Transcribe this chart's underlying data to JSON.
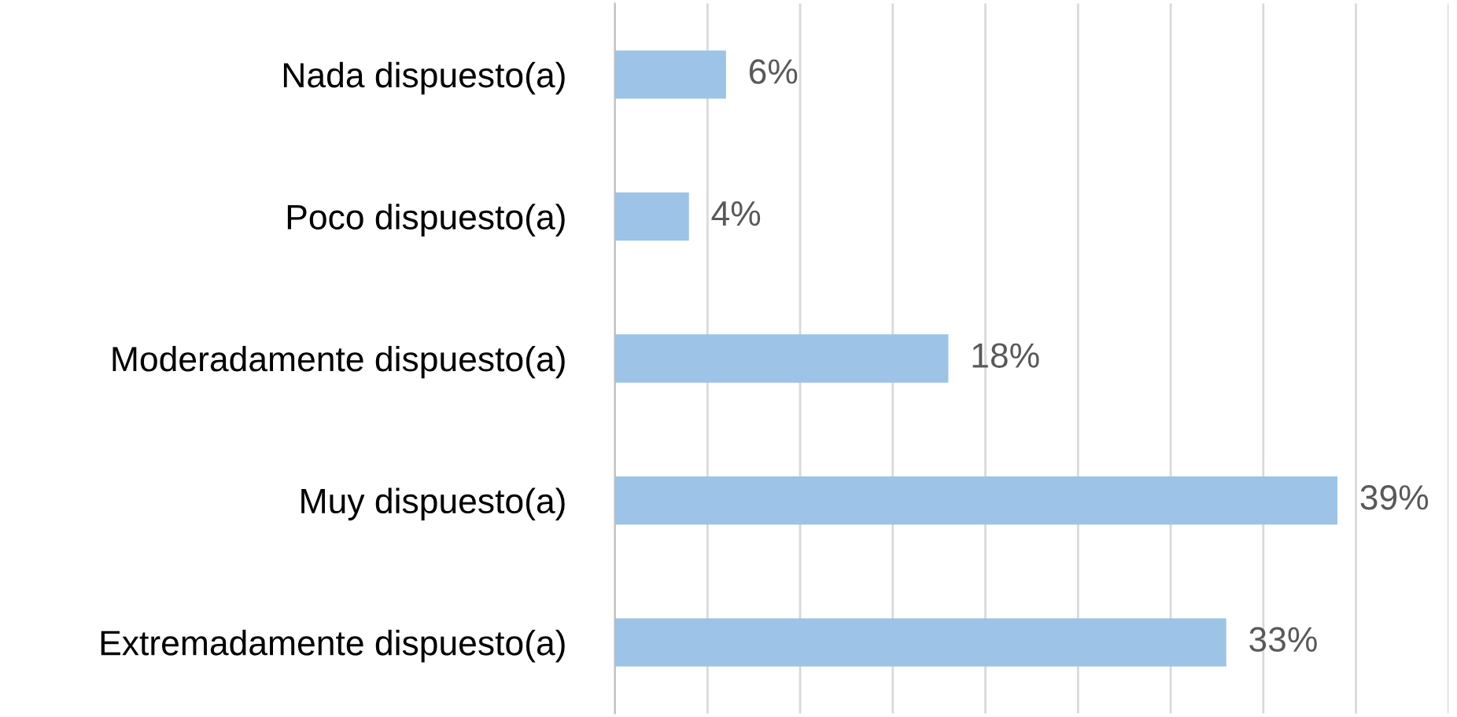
{
  "chart_data": {
    "type": "bar",
    "orientation": "horizontal",
    "categories": [
      "Nada dispuesto(a)",
      "Poco dispuesto(a)",
      "Moderadamente dispuesto(a)",
      "Muy dispuesto(a)",
      "Extremadamente dispuesto(a)"
    ],
    "values": [
      6,
      4,
      18,
      39,
      33
    ],
    "value_labels": [
      "6%",
      "4%",
      "18%",
      "39%",
      "33%"
    ],
    "color": "#9dc3e6",
    "xlim": [
      0,
      45
    ],
    "xticks": [
      {
        "value": 0,
        "label": null
      },
      {
        "value": 5,
        "label": null
      },
      {
        "value": 10,
        "label": null
      },
      {
        "value": 15,
        "label": null
      },
      {
        "value": 20,
        "label": null
      },
      {
        "value": 25,
        "label": null
      },
      {
        "value": 30,
        "label": null
      },
      {
        "value": 35,
        "label": null
      },
      {
        "value": 40,
        "label": null
      },
      {
        "value": 45,
        "label": null
      }
    ],
    "tick_labels": "y",
    "grid": "x",
    "legend": false
  }
}
